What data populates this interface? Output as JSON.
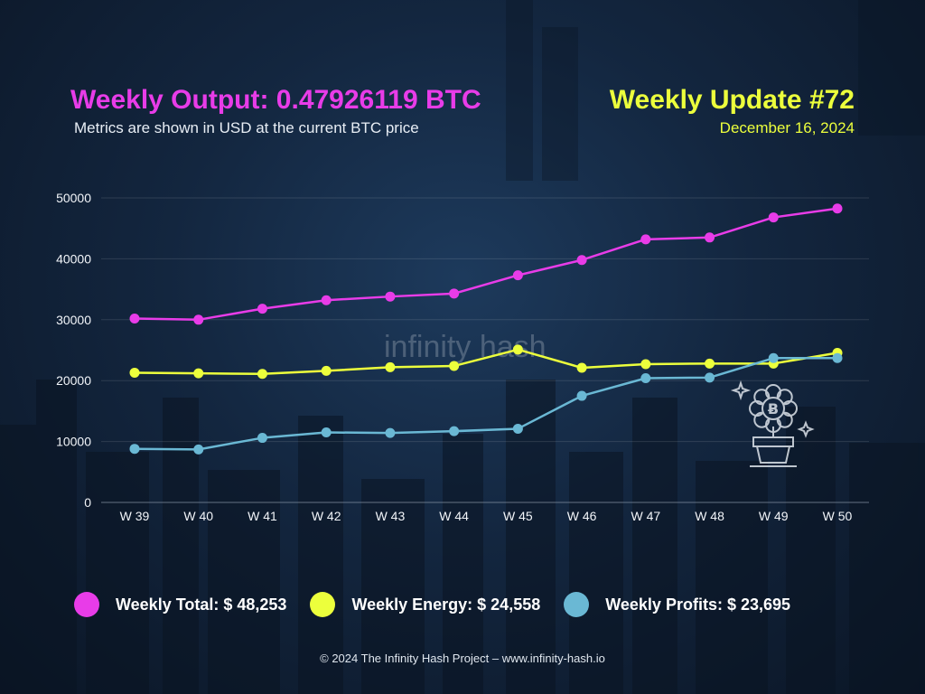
{
  "header": {
    "title": "Weekly Output: 0.47926119 BTC",
    "subtitle": "Metrics are shown in USD at the current BTC price",
    "update_title": "Weekly Update #72",
    "date": "December 16, 2024"
  },
  "watermark": "infinity hash",
  "legend": [
    {
      "label": "Weekly Total: $ 48,253",
      "color": "#e83ce8"
    },
    {
      "label": "Weekly Energy: $ 24,558",
      "color": "#ecff3c"
    },
    {
      "label": "Weekly Profits: $ 23,695",
      "color": "#6ab8d4"
    }
  ],
  "footer": "© 2024 The Infinity Hash Project – www.infinity-hash.io",
  "icons": [
    "bitcoin-plant-icon"
  ],
  "chart_data": {
    "type": "line",
    "categories": [
      "W 39",
      "W 40",
      "W 41",
      "W 42",
      "W 43",
      "W 44",
      "W 45",
      "W 46",
      "W 47",
      "W 48",
      "W 49",
      "W 50"
    ],
    "yticks": [
      "0",
      "10000",
      "20000",
      "30000",
      "40000",
      "50000"
    ],
    "ylim": [
      0,
      50000
    ],
    "grid": true,
    "series": [
      {
        "color": "#e83ce8",
        "values": [
          30200,
          30000,
          31800,
          33200,
          33800,
          34300,
          37300,
          39800,
          43200,
          43500,
          46800,
          48253
        ]
      },
      {
        "color": "#ecff3c",
        "values": [
          21300,
          21200,
          21100,
          21600,
          22200,
          22400,
          25100,
          22100,
          22700,
          22800,
          22800,
          24558
        ]
      },
      {
        "color": "#6ab8d4",
        "values": [
          8800,
          8700,
          10600,
          11500,
          11400,
          11700,
          12100,
          17500,
          20400,
          20500,
          23700,
          23695
        ]
      }
    ]
  }
}
